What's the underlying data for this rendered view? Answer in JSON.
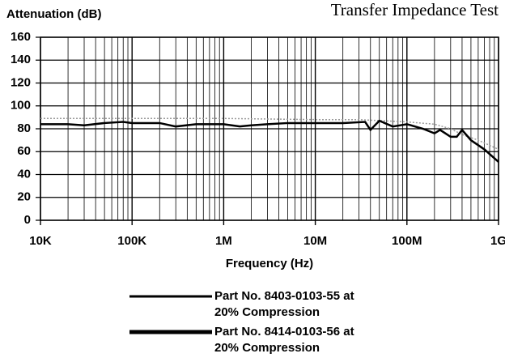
{
  "chart_data": {
    "type": "line",
    "title": "Transfer Impedance Test",
    "y_label": "Attenuation (dB)",
    "x_label": "Frequency (Hz)",
    "log_x": true,
    "grid": true,
    "xlim": [
      10000,
      1000000000
    ],
    "xticks": [
      {
        "value": 10000,
        "label": "10K"
      },
      {
        "value": 100000,
        "label": "100K"
      },
      {
        "value": 1000000,
        "label": "1M"
      },
      {
        "value": 10000000,
        "label": "10M"
      },
      {
        "value": 100000000,
        "label": "100M"
      },
      {
        "value": 1000000000,
        "label": "1G"
      }
    ],
    "ylim": [
      0,
      160
    ],
    "yticks": [
      0,
      20,
      40,
      60,
      80,
      100,
      120,
      140,
      160
    ],
    "series": [
      {
        "name": "Part No. 8403-0103-55 at 20% Compression",
        "color": "#9a9a9a",
        "x": [
          10000,
          100000,
          1000000,
          10000000,
          30000000,
          100000000,
          200000000,
          300000000,
          400000000,
          600000000,
          1000000000
        ],
        "values": [
          89,
          89,
          89,
          88,
          88,
          86,
          84,
          80,
          75,
          70,
          62
        ]
      },
      {
        "name": "Part No. 8414-0103-56 at 20% Compression",
        "color": "#000000",
        "x": [
          10000,
          20000,
          30000,
          50000,
          80000,
          100000,
          200000,
          300000,
          500000,
          1000000,
          1500000,
          2000000,
          3000000,
          5000000,
          10000000,
          20000000,
          35000000,
          40000000,
          50000000,
          70000000,
          100000000,
          150000000,
          200000000,
          230000000,
          300000000,
          350000000,
          400000000,
          500000000,
          700000000,
          1000000000
        ],
        "values": [
          84,
          84,
          83,
          85,
          86,
          85,
          85,
          82,
          84,
          84,
          82,
          83,
          84,
          85,
          85,
          85,
          86,
          79,
          87,
          82,
          84,
          80,
          76,
          79,
          73,
          73,
          79,
          70,
          62,
          51
        ]
      }
    ]
  }
}
